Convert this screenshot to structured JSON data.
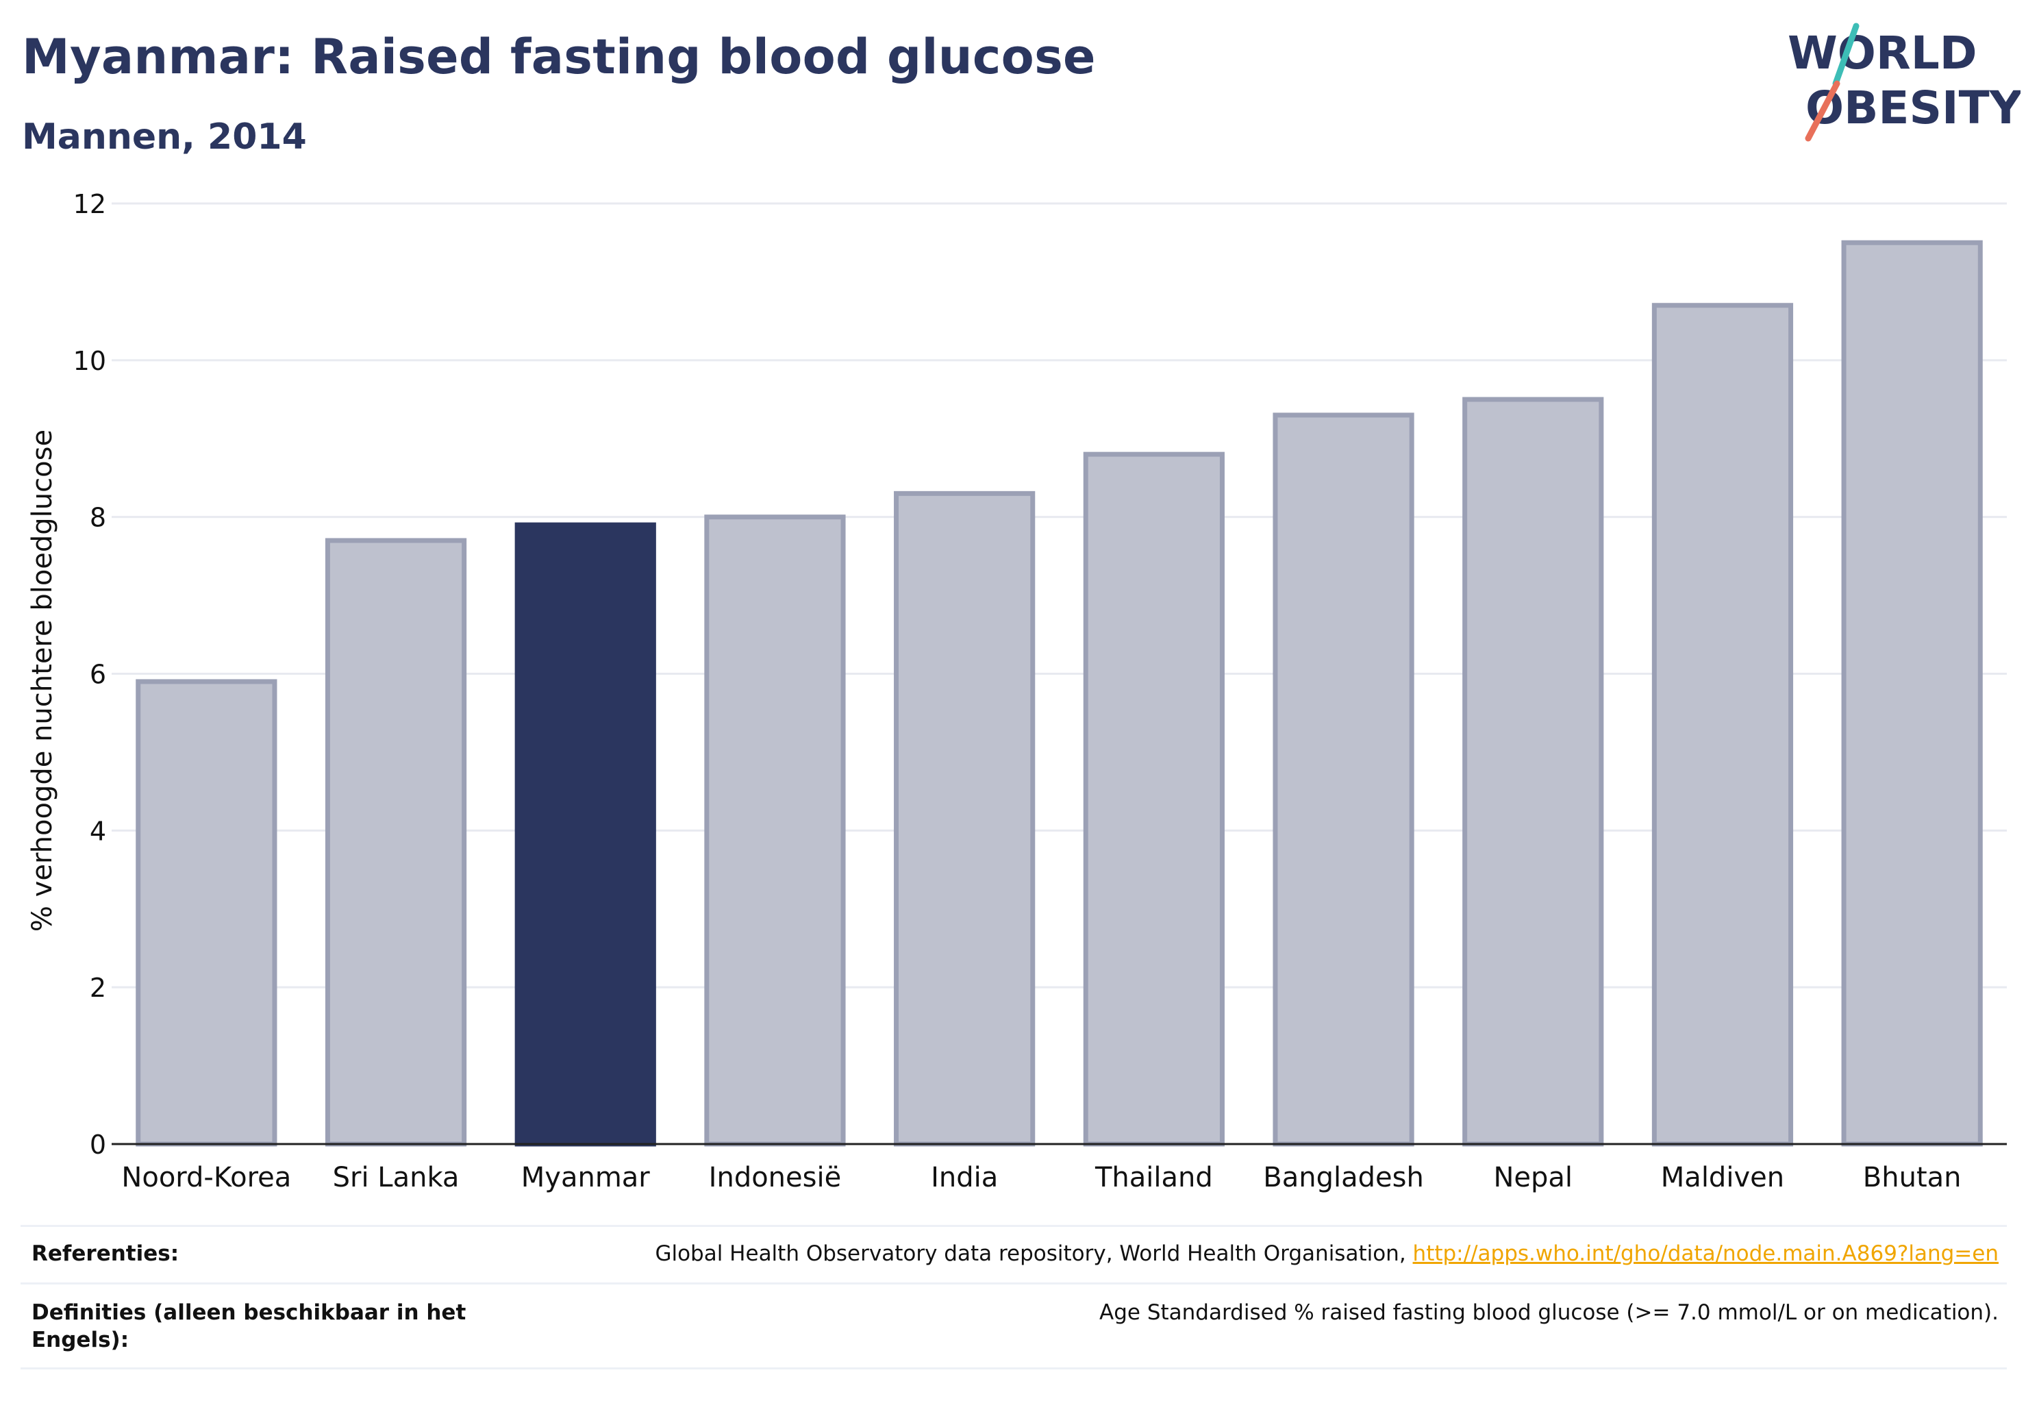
{
  "header": {
    "title": "Myanmar: Raised fasting blood glucose",
    "subtitle": "Mannen, 2014"
  },
  "logo": {
    "line1": "WORLD",
    "line2": "OBESITY",
    "accent_colors": [
      "#3dbdb6",
      "#e8705a"
    ]
  },
  "chart_data": {
    "type": "bar",
    "categories": [
      "Noord-Korea",
      "Sri Lanka",
      "Myanmar",
      "Indonesië",
      "India",
      "Thailand",
      "Bangladesh",
      "Nepal",
      "Maldiven",
      "Bhutan"
    ],
    "values": [
      5.9,
      7.7,
      7.9,
      8.0,
      8.3,
      8.8,
      9.3,
      9.5,
      10.7,
      11.5
    ],
    "highlight": "Myanmar",
    "title": "",
    "xlabel": "",
    "ylabel": "% verhoogde nuchtere bloedglucose",
    "ylim": [
      0,
      12
    ],
    "yticks": [
      0,
      2,
      4,
      6,
      8,
      10,
      12
    ],
    "grid": true,
    "colors": {
      "highlight": "#2b365f",
      "default_fill": "#bec1ce",
      "default_stroke": "#9ba0b5"
    }
  },
  "footer": {
    "references_label": "Referenties:",
    "references_text": "Global Health Observatory data repository, World Health Organisation,",
    "references_link": "http://apps.who.int/gho/data/node.main.A869?lang=en",
    "definitions_label": "Definities (alleen beschikbaar in het Engels):",
    "definitions_text": "Age Standardised % raised fasting blood glucose (>= 7.0 mmol/L or on medication)."
  }
}
